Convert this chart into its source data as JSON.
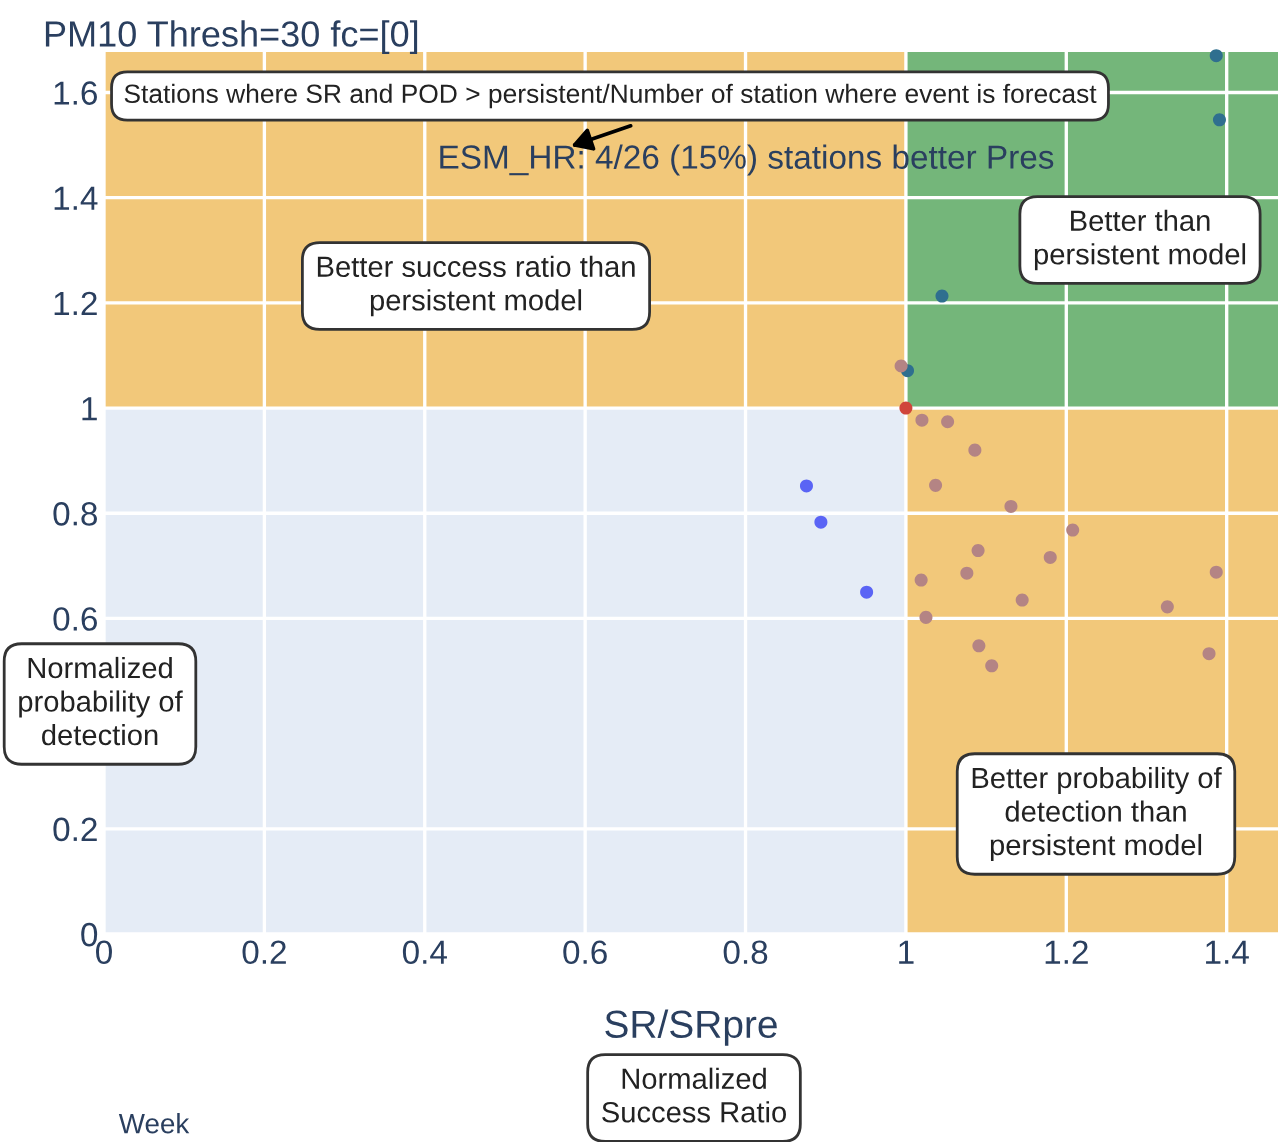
{
  "chart_data": {
    "type": "scatter",
    "title": "PM10 Thresh=30 fc=[0]",
    "xlabel": "SR/SRpre",
    "xlim": [
      0,
      1.464
    ],
    "ylim": [
      0,
      1.677
    ],
    "xticks": [
      0,
      0.2,
      0.4,
      0.6,
      0.8,
      1,
      1.2,
      1.4
    ],
    "yticks": [
      0,
      0.2,
      0.6,
      0.8,
      1,
      1.2,
      1.4,
      1.6
    ],
    "grid": true,
    "marker": "circle",
    "series": [
      {
        "color": "#2f6f8f",
        "x": [
          1.387,
          1.391,
          1.045,
          1.002
        ],
        "values": [
          1.67,
          1.548,
          1.213,
          1.071
        ]
      },
      {
        "color": "#b48484",
        "x": [
          0.994,
          1.02,
          1.052,
          1.086,
          1.037,
          1.131,
          1.208,
          1.09,
          1.18,
          1.076,
          1.387,
          1.019,
          1.145,
          1.326,
          1.025,
          1.091,
          1.378,
          1.107
        ],
        "values": [
          1.08,
          0.977,
          0.974,
          0.92,
          0.853,
          0.813,
          0.768,
          0.729,
          0.716,
          0.686,
          0.688,
          0.673,
          0.635,
          0.622,
          0.602,
          0.548,
          0.533,
          0.51
        ]
      },
      {
        "color": "#5a64f5",
        "x": [
          0.876,
          0.894,
          0.951
        ],
        "values": [
          0.852,
          0.783,
          0.65
        ]
      },
      {
        "color": "#d0453a",
        "x": [
          1.0
        ],
        "values": [
          1.0
        ]
      }
    ],
    "bands": [
      {
        "axis": "y",
        "from": 1,
        "to": 1.677,
        "color": "#f2c87a"
      },
      {
        "axis": "y",
        "from": 1,
        "to": 1.677,
        "color": "#74b67a"
      },
      {
        "axis": "x",
        "from": 1,
        "to": 1.464,
        "color": "#f2c87a"
      }
    ],
    "annotations": [
      "Stations where SR and POD > persistent/Number of station where event is forecast",
      "ESM_HR: 4/26 (15%) stations better Pres",
      "Better success ratio than\npersistent model",
      "Better than\npersistent model",
      "Better probability of\ndetection than\npersistent model",
      "Normalized\nprobability of\ndetection",
      "Normalized\nSuccess Ratio",
      "Week"
    ]
  }
}
